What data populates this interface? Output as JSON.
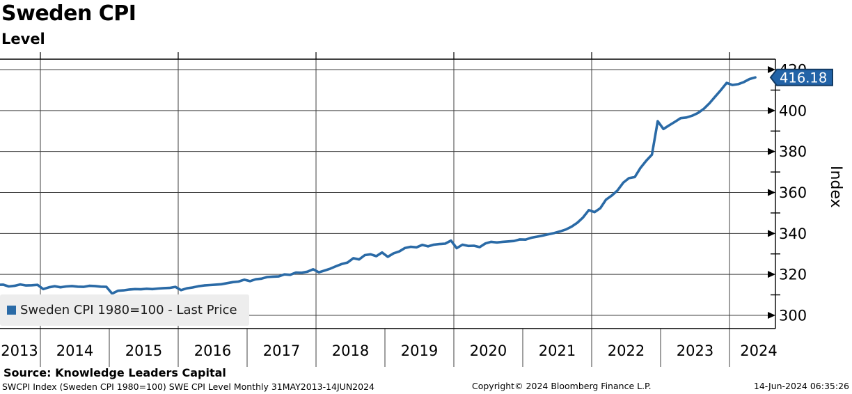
{
  "header": {
    "title": "Sweden CPI",
    "subtitle": "Level"
  },
  "legend": {
    "label": "Sweden CPI 1980=100 - Last Price",
    "marker_color": "#2a6aa6"
  },
  "footer": {
    "source": "Source: Knowledge Leaders Capital",
    "ticker_line": "SWCPI Index (Sweden CPI 1980=100) SWE CPI Level  Monthly 31MAY2013-14JUN2024",
    "copyright": "Copyright© 2024 Bloomberg Finance L.P.",
    "timestamp": "14-Jun-2024 06:35:26"
  },
  "chart_data": {
    "type": "line",
    "title": "Sweden CPI",
    "subtitle": "Level",
    "series_name": "Sweden CPI 1980=100 - Last Price",
    "ylabel": "Index",
    "frequency": "monthly",
    "start_month": "2013-05",
    "end_month": "2024-05",
    "ylim": [
      292,
      425.5
    ],
    "y_ticks": [
      300,
      320,
      340,
      360,
      380,
      400,
      420
    ],
    "y_minor_ticks": [
      310,
      330,
      350,
      370,
      390,
      410
    ],
    "x_tick_labels": [
      "2013",
      "2014",
      "2015",
      "2016",
      "2017",
      "2018",
      "2019",
      "2020",
      "2021",
      "2022",
      "2023",
      "2024"
    ],
    "x_gridline_years": [
      2014,
      2016,
      2018,
      2020,
      2022,
      2024
    ],
    "grid": true,
    "legend_position": "bottom-left",
    "line_color": "#2a6aa6",
    "flag_fill_color": "#2263a7",
    "flag_border_color": "#123a63",
    "last_price": 416.18,
    "last_price_label": "416.18",
    "values": [
      314.9,
      315.0,
      314.1,
      314.4,
      315.1,
      314.6,
      314.7,
      314.9,
      312.8,
      313.7,
      314.2,
      313.7,
      314.1,
      314.3,
      314.0,
      313.9,
      314.4,
      314.3,
      314.0,
      313.9,
      310.6,
      312.0,
      312.2,
      312.6,
      312.8,
      312.7,
      313.0,
      312.8,
      313.1,
      313.3,
      313.4,
      313.9,
      312.3,
      313.2,
      313.6,
      314.2,
      314.6,
      314.8,
      315.0,
      315.2,
      315.7,
      316.2,
      316.5,
      317.4,
      316.7,
      317.6,
      317.9,
      318.7,
      318.9,
      319.0,
      320.0,
      319.8,
      320.9,
      320.8,
      321.3,
      322.5,
      321.0,
      321.9,
      322.8,
      324.0,
      325.1,
      325.8,
      327.9,
      327.3,
      329.4,
      329.8,
      328.9,
      330.7,
      328.6,
      330.3,
      331.2,
      332.9,
      333.5,
      333.2,
      334.4,
      333.7,
      334.5,
      334.8,
      335.0,
      336.5,
      332.8,
      334.5,
      333.9,
      334.0,
      333.3,
      335.1,
      335.9,
      335.6,
      335.9,
      336.1,
      336.3,
      337.1,
      337.0,
      337.9,
      338.4,
      339.0,
      339.6,
      340.2,
      341.0,
      341.9,
      343.3,
      345.2,
      347.8,
      351.4,
      350.4,
      352.3,
      356.5,
      358.5,
      361.0,
      364.8,
      367.0,
      367.5,
      372.0,
      375.5,
      378.5,
      394.8,
      391.0,
      392.8,
      394.5,
      396.3,
      396.6,
      397.5,
      398.8,
      400.8,
      403.5,
      406.8,
      410.0,
      413.5,
      412.5,
      412.9,
      413.9,
      415.4,
      416.18
    ]
  }
}
